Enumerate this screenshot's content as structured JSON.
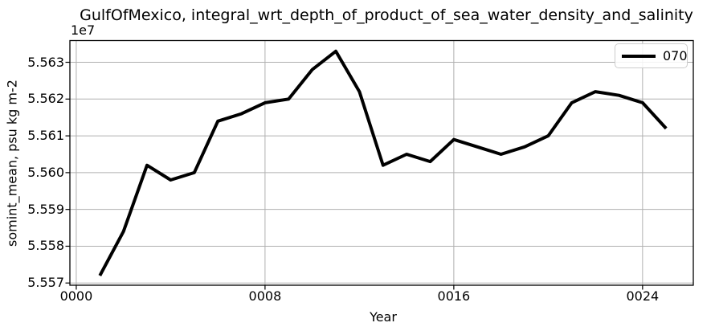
{
  "title": "GulfOfMexico, integral_wrt_depth_of_product_of_sea_water_density_and_salinity",
  "axes": {
    "offset_text": "1e7",
    "xlabel": "Year",
    "ylabel": "somint_mean, psu kg m-2"
  },
  "legend": {
    "series_label": "070"
  },
  "colors": {
    "line": "#000000",
    "grid": "#b0b0b0",
    "spine": "#000000",
    "legend_border": "#cccccc",
    "background": "#ffffff"
  },
  "chart_data": {
    "type": "line",
    "title": "GulfOfMexico, integral_wrt_depth_of_product_of_sea_water_density_and_salinity",
    "xlabel": "Year",
    "ylabel": "somint_mean, psu kg m-2",
    "y_offset_factor": "1e7",
    "grid": true,
    "legend_position": "upper right",
    "xlim": [
      -0.27,
      26.15
    ],
    "ylim": [
      5.55694,
      5.56359
    ],
    "x_ticks": [
      0,
      8,
      16,
      24
    ],
    "x_tick_labels": [
      "0000",
      "0008",
      "0016",
      "0024"
    ],
    "y_ticks": [
      5.557,
      5.558,
      5.559,
      5.56,
      5.561,
      5.562,
      5.563
    ],
    "y_tick_labels": [
      "5.557",
      "5.558",
      "5.559",
      "5.560",
      "5.561",
      "5.562",
      "5.563"
    ],
    "series": [
      {
        "name": "070",
        "color": "#000000",
        "x": [
          1,
          2,
          3,
          4,
          5,
          6,
          7,
          8,
          9,
          10,
          11,
          12,
          13,
          14,
          15,
          16,
          17,
          18,
          19,
          20,
          21,
          22,
          23,
          24,
          25
        ],
        "values": [
          5.5572,
          5.5584,
          5.5602,
          5.5598,
          5.56,
          5.5614,
          5.5616,
          5.5619,
          5.562,
          5.5628,
          5.5633,
          5.5622,
          5.5602,
          5.5605,
          5.5603,
          5.5609,
          5.5607,
          5.5605,
          5.5607,
          5.561,
          5.5619,
          5.5622,
          5.5621,
          5.5619,
          5.5612
        ]
      }
    ]
  }
}
